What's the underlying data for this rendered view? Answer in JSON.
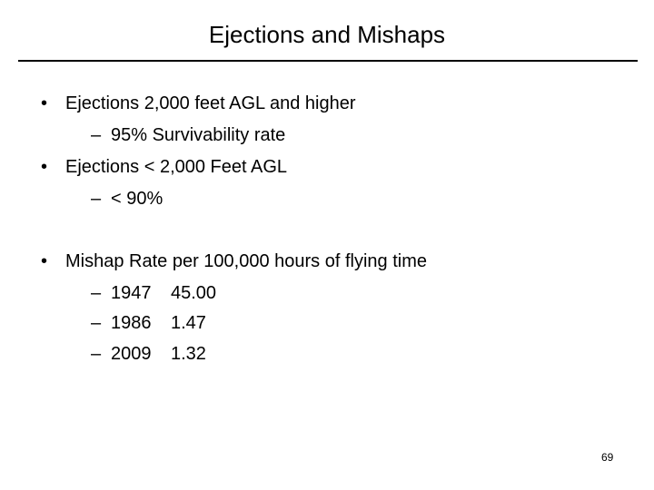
{
  "slide": {
    "title": "Ejections and Mishaps",
    "page_number": "69"
  },
  "bullets": [
    {
      "marker": "•",
      "text": "Ejections 2,000 feet AGL and higher",
      "sub": [
        {
          "marker": "–",
          "text": "95% Survivability rate"
        }
      ]
    },
    {
      "marker": "•",
      "text": "Ejections < 2,000 Feet AGL",
      "sub": [
        {
          "marker": "–",
          "text": "< 90%"
        }
      ]
    },
    {
      "marker": "•",
      "text": "Mishap Rate per 100,000 hours of flying time",
      "rows": [
        {
          "marker": "–",
          "year": "1947",
          "rate": "45.00"
        },
        {
          "marker": "–",
          "year": "1986",
          "rate": "1.47"
        },
        {
          "marker": "–",
          "year": "2009",
          "rate": "1.32"
        }
      ]
    }
  ]
}
